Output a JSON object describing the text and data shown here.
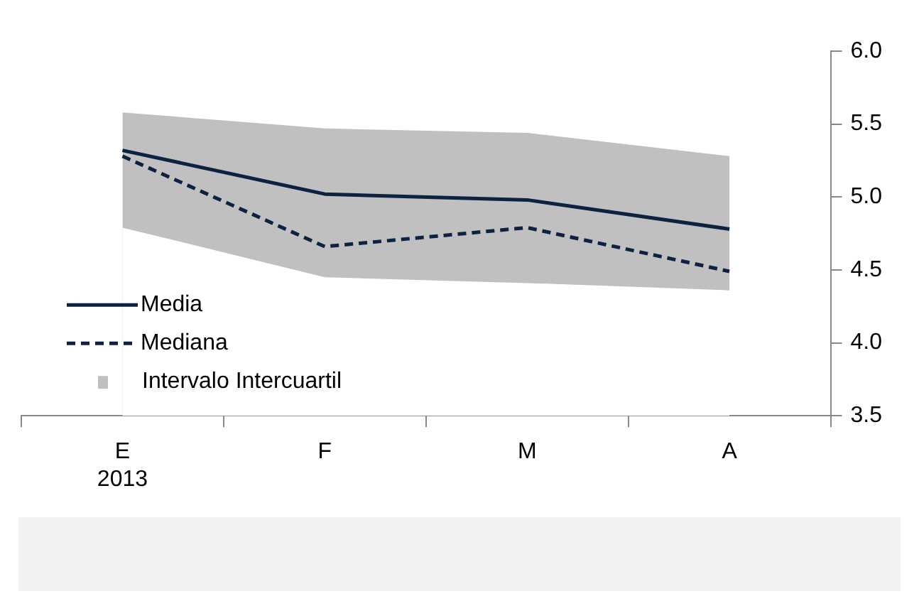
{
  "chart_data": {
    "type": "line",
    "categories": [
      "E\n2013",
      "F",
      "M",
      "A"
    ],
    "series": [
      {
        "name": "Media",
        "color": "#0d2240",
        "line_style": "solid",
        "values": [
          5.32,
          5.02,
          4.98,
          4.78
        ]
      },
      {
        "name": "Mediana",
        "color": "#0d2240",
        "line_style": "dashed",
        "values": [
          5.28,
          4.66,
          4.79,
          4.49
        ]
      },
      {
        "name": "Intervalo Intercuartil",
        "type": "area",
        "color": "#c0c0c0",
        "values": [
          5.58,
          5.47,
          5.44,
          5.28
        ]
      },
      {
        "type": "area",
        "color": "#ffffff",
        "values": [
          4.79,
          4.45,
          4.41,
          4.36
        ]
      }
    ],
    "ylim": [
      3.5,
      6.0
    ],
    "yticks": [
      {
        "value": 3.5,
        "label": "3.5"
      },
      {
        "value": 4.0,
        "label": "4.0"
      },
      {
        "value": 4.5,
        "label": "4.5"
      },
      {
        "value": 5.0,
        "label": "5.0"
      },
      {
        "value": 5.5,
        "label": "5.5"
      },
      {
        "value": 6.0,
        "label": "6.0"
      }
    ],
    "grid": false,
    "legend": "bottom left",
    "marker": "none"
  }
}
